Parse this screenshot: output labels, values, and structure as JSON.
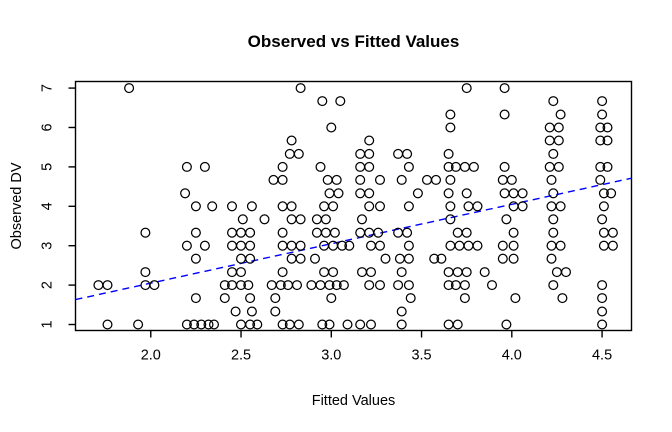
{
  "chart_data": {
    "type": "scatter",
    "title": "Observed vs Fitted Values",
    "xlabel": "Fitted Values",
    "ylabel": "Observed DV",
    "xlim": [
      1.583,
      4.663
    ],
    "ylim": [
      0.848,
      7.167
    ],
    "grid": false,
    "legend": null,
    "marker": "open-circle",
    "marker_color": "#000000",
    "x_ticks": [
      {
        "value": 2.0,
        "label": "2.0"
      },
      {
        "value": 2.5,
        "label": "2.5"
      },
      {
        "value": 3.0,
        "label": "3.0"
      },
      {
        "value": 3.5,
        "label": "3.5"
      },
      {
        "value": 4.0,
        "label": "4.0"
      },
      {
        "value": 4.5,
        "label": "4.5"
      }
    ],
    "y_ticks": [
      {
        "value": 1,
        "label": "1"
      },
      {
        "value": 2,
        "label": "2"
      },
      {
        "value": 3,
        "label": "3"
      },
      {
        "value": 4,
        "label": "4"
      },
      {
        "value": 5,
        "label": "5"
      },
      {
        "value": 6,
        "label": "6"
      },
      {
        "value": 7,
        "label": "7"
      }
    ],
    "fit_line": {
      "style": "dashed",
      "color": "#0000ff",
      "x": [
        1.583,
        4.663
      ],
      "y": [
        1.633,
        4.713
      ]
    },
    "points": [
      [
        1.88,
        7
      ],
      [
        2.83,
        7
      ],
      [
        3.75,
        7
      ],
      [
        3.96,
        7
      ],
      [
        2.95,
        6.67
      ],
      [
        3.05,
        6.67
      ],
      [
        4.23,
        6.67
      ],
      [
        4.5,
        6.67
      ],
      [
        3.66,
        6.33
      ],
      [
        3.96,
        6.33
      ],
      [
        4.27,
        6.33
      ],
      [
        4.5,
        6.33
      ],
      [
        3.0,
        6
      ],
      [
        3.66,
        6
      ],
      [
        4.21,
        6
      ],
      [
        4.26,
        6
      ],
      [
        4.49,
        6
      ],
      [
        4.53,
        6
      ],
      [
        2.78,
        5.67
      ],
      [
        3.21,
        5.67
      ],
      [
        4.21,
        5.67
      ],
      [
        4.26,
        5.67
      ],
      [
        4.49,
        5.67
      ],
      [
        4.53,
        5.67
      ],
      [
        2.77,
        5.33
      ],
      [
        2.82,
        5.33
      ],
      [
        3.16,
        5.33
      ],
      [
        3.21,
        5.33
      ],
      [
        3.37,
        5.33
      ],
      [
        3.42,
        5.33
      ],
      [
        3.65,
        5.33
      ],
      [
        4.23,
        5.33
      ],
      [
        2.2,
        5
      ],
      [
        2.3,
        5
      ],
      [
        2.73,
        5
      ],
      [
        2.94,
        5
      ],
      [
        3.16,
        5
      ],
      [
        3.21,
        5
      ],
      [
        3.43,
        5
      ],
      [
        3.65,
        5
      ],
      [
        3.69,
        5
      ],
      [
        3.74,
        5
      ],
      [
        3.79,
        5
      ],
      [
        3.96,
        5
      ],
      [
        4.21,
        5
      ],
      [
        4.26,
        5
      ],
      [
        4.49,
        5
      ],
      [
        4.53,
        5
      ],
      [
        2.68,
        4.67
      ],
      [
        2.73,
        4.67
      ],
      [
        2.98,
        4.67
      ],
      [
        3.03,
        4.67
      ],
      [
        3.16,
        4.67
      ],
      [
        3.27,
        4.67
      ],
      [
        3.39,
        4.67
      ],
      [
        3.53,
        4.67
      ],
      [
        3.58,
        4.67
      ],
      [
        3.66,
        4.67
      ],
      [
        3.95,
        4.67
      ],
      [
        4.0,
        4.67
      ],
      [
        4.22,
        4.67
      ],
      [
        4.49,
        4.67
      ],
      [
        2.19,
        4.33
      ],
      [
        2.99,
        4.33
      ],
      [
        3.04,
        4.33
      ],
      [
        3.16,
        4.33
      ],
      [
        3.21,
        4.33
      ],
      [
        3.48,
        4.33
      ],
      [
        3.65,
        4.33
      ],
      [
        3.75,
        4.33
      ],
      [
        3.96,
        4.33
      ],
      [
        4.01,
        4.33
      ],
      [
        4.06,
        4.33
      ],
      [
        4.23,
        4.33
      ],
      [
        4.51,
        4.33
      ],
      [
        4.55,
        4.33
      ],
      [
        2.25,
        4
      ],
      [
        2.34,
        4
      ],
      [
        2.45,
        4
      ],
      [
        2.56,
        4
      ],
      [
        2.73,
        4
      ],
      [
        2.78,
        4
      ],
      [
        2.96,
        4
      ],
      [
        3.01,
        4
      ],
      [
        3.21,
        4
      ],
      [
        3.27,
        4
      ],
      [
        3.43,
        4
      ],
      [
        3.66,
        4
      ],
      [
        3.76,
        4
      ],
      [
        3.81,
        4
      ],
      [
        4.01,
        4
      ],
      [
        4.06,
        4
      ],
      [
        4.22,
        4
      ],
      [
        4.27,
        4
      ],
      [
        4.51,
        4
      ],
      [
        2.51,
        3.67
      ],
      [
        2.63,
        3.67
      ],
      [
        2.78,
        3.67
      ],
      [
        2.83,
        3.67
      ],
      [
        2.92,
        3.67
      ],
      [
        2.97,
        3.67
      ],
      [
        3.17,
        3.67
      ],
      [
        3.66,
        3.67
      ],
      [
        3.97,
        3.67
      ],
      [
        4.23,
        3.67
      ],
      [
        4.5,
        3.67
      ],
      [
        1.97,
        3.33
      ],
      [
        2.25,
        3.33
      ],
      [
        2.45,
        3.33
      ],
      [
        2.5,
        3.33
      ],
      [
        2.55,
        3.33
      ],
      [
        2.73,
        3.33
      ],
      [
        2.92,
        3.33
      ],
      [
        2.97,
        3.33
      ],
      [
        3.02,
        3.33
      ],
      [
        3.16,
        3.33
      ],
      [
        3.21,
        3.33
      ],
      [
        3.26,
        3.33
      ],
      [
        3.37,
        3.33
      ],
      [
        3.42,
        3.33
      ],
      [
        3.7,
        3.33
      ],
      [
        3.75,
        3.33
      ],
      [
        4.01,
        3.33
      ],
      [
        4.23,
        3.33
      ],
      [
        4.51,
        3.33
      ],
      [
        4.56,
        3.33
      ],
      [
        2.2,
        3
      ],
      [
        2.3,
        3
      ],
      [
        2.45,
        3
      ],
      [
        2.5,
        3
      ],
      [
        2.55,
        3
      ],
      [
        2.73,
        3
      ],
      [
        2.78,
        3
      ],
      [
        2.83,
        3
      ],
      [
        2.96,
        3
      ],
      [
        3.01,
        3
      ],
      [
        3.06,
        3
      ],
      [
        3.1,
        3
      ],
      [
        3.22,
        3
      ],
      [
        3.27,
        3
      ],
      [
        3.43,
        3
      ],
      [
        3.66,
        3
      ],
      [
        3.71,
        3
      ],
      [
        3.76,
        3
      ],
      [
        3.81,
        3
      ],
      [
        3.95,
        3
      ],
      [
        4.01,
        3
      ],
      [
        4.22,
        3
      ],
      [
        4.27,
        3
      ],
      [
        4.51,
        3
      ],
      [
        4.56,
        3
      ],
      [
        2.25,
        2.67
      ],
      [
        2.5,
        2.67
      ],
      [
        2.55,
        2.67
      ],
      [
        2.78,
        2.67
      ],
      [
        2.83,
        2.67
      ],
      [
        2.91,
        2.67
      ],
      [
        3.3,
        2.67
      ],
      [
        3.38,
        2.67
      ],
      [
        3.43,
        2.67
      ],
      [
        3.57,
        2.67
      ],
      [
        3.61,
        2.67
      ],
      [
        3.95,
        2.67
      ],
      [
        4.01,
        2.67
      ],
      [
        4.22,
        2.67
      ],
      [
        1.97,
        2.33
      ],
      [
        2.45,
        2.33
      ],
      [
        2.5,
        2.33
      ],
      [
        2.73,
        2.33
      ],
      [
        2.96,
        2.33
      ],
      [
        3.01,
        2.33
      ],
      [
        3.17,
        2.33
      ],
      [
        3.22,
        2.33
      ],
      [
        3.39,
        2.33
      ],
      [
        3.65,
        2.33
      ],
      [
        3.7,
        2.33
      ],
      [
        3.75,
        2.33
      ],
      [
        3.85,
        2.33
      ],
      [
        4.25,
        2.33
      ],
      [
        4.3,
        2.33
      ],
      [
        1.71,
        2
      ],
      [
        1.76,
        2
      ],
      [
        1.97,
        2
      ],
      [
        2.02,
        2
      ],
      [
        2.41,
        2
      ],
      [
        2.45,
        2
      ],
      [
        2.5,
        2
      ],
      [
        2.54,
        2
      ],
      [
        2.67,
        2
      ],
      [
        2.72,
        2
      ],
      [
        2.76,
        2
      ],
      [
        2.81,
        2
      ],
      [
        2.89,
        2
      ],
      [
        2.94,
        2
      ],
      [
        2.99,
        2
      ],
      [
        3.03,
        2
      ],
      [
        3.07,
        2
      ],
      [
        3.21,
        2
      ],
      [
        3.27,
        2
      ],
      [
        3.37,
        2
      ],
      [
        3.43,
        2
      ],
      [
        3.65,
        2
      ],
      [
        3.69,
        2
      ],
      [
        3.74,
        2
      ],
      [
        3.89,
        2
      ],
      [
        4.23,
        2
      ],
      [
        4.5,
        2
      ],
      [
        2.25,
        1.67
      ],
      [
        2.41,
        1.67
      ],
      [
        2.55,
        1.67
      ],
      [
        2.69,
        1.67
      ],
      [
        3.0,
        1.67
      ],
      [
        3.44,
        1.67
      ],
      [
        3.74,
        1.67
      ],
      [
        4.02,
        1.67
      ],
      [
        4.28,
        1.67
      ],
      [
        4.5,
        1.67
      ],
      [
        2.47,
        1.33
      ],
      [
        2.56,
        1.33
      ],
      [
        2.69,
        1.33
      ],
      [
        3.39,
        1.33
      ],
      [
        4.5,
        1.33
      ],
      [
        1.76,
        1
      ],
      [
        1.93,
        1
      ],
      [
        2.2,
        1
      ],
      [
        2.24,
        1
      ],
      [
        2.28,
        1
      ],
      [
        2.32,
        1
      ],
      [
        2.35,
        1
      ],
      [
        2.5,
        1
      ],
      [
        2.55,
        1
      ],
      [
        2.59,
        1
      ],
      [
        2.73,
        1
      ],
      [
        2.77,
        1
      ],
      [
        2.82,
        1
      ],
      [
        2.95,
        1
      ],
      [
        2.99,
        1
      ],
      [
        3.09,
        1
      ],
      [
        3.16,
        1
      ],
      [
        3.22,
        1
      ],
      [
        3.39,
        1
      ],
      [
        3.65,
        1
      ],
      [
        3.7,
        1
      ],
      [
        3.97,
        1
      ],
      [
        4.5,
        1
      ]
    ]
  }
}
